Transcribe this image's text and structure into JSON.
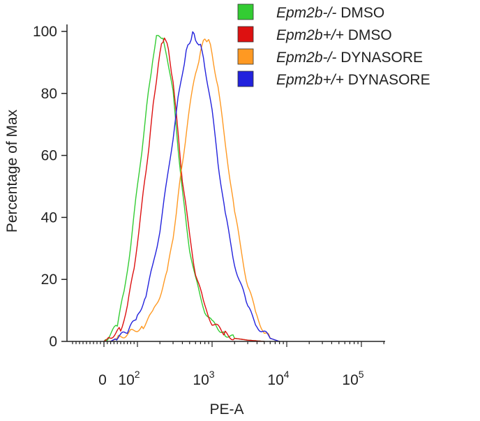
{
  "chart_data": {
    "type": "line",
    "title": "",
    "xlabel": "PE-A",
    "ylabel": "Percentage of Max",
    "x_scale": "biexponential",
    "xlim": [
      -30,
      200000
    ],
    "ylim": [
      0,
      100
    ],
    "y_ticks": [
      0,
      20,
      40,
      60,
      80,
      100
    ],
    "x_ticks": [
      {
        "value": 0,
        "base": "0",
        "exp": ""
      },
      {
        "value": 100,
        "base": "10",
        "exp": "2"
      },
      {
        "value": 1000,
        "base": "10",
        "exp": "3"
      },
      {
        "value": 10000,
        "base": "10",
        "exp": "4"
      },
      {
        "value": 100000,
        "base": "10",
        "exp": "5"
      }
    ],
    "grid": false,
    "legend_position": "top-right",
    "series": [
      {
        "name_italic": "Epm2b-/-",
        "name_rest": " DMSO",
        "color": "#33cc33",
        "x": [
          0,
          40,
          60,
          80,
          100,
          120,
          140,
          160,
          180,
          200,
          220,
          250,
          300,
          350,
          400,
          500,
          600,
          800,
          1000,
          1500,
          2000,
          3000,
          5000
        ],
        "y": [
          0,
          5,
          16,
          31,
          50,
          66,
          80,
          91,
          98,
          99,
          97,
          92,
          80,
          63,
          48,
          30,
          20,
          10,
          6,
          2.5,
          1,
          0.4,
          0
        ]
      },
      {
        "name_italic": "Epm2b+/+",
        "name_rest": " DMSO",
        "color": "#dd1111",
        "x": [
          0,
          50,
          70,
          90,
          110,
          130,
          150,
          170,
          190,
          210,
          230,
          260,
          300,
          350,
          400,
          500,
          600,
          800,
          1000,
          1500,
          2000,
          3000,
          5000
        ],
        "y": [
          0,
          4,
          11,
          24,
          40,
          55,
          68,
          80,
          89,
          96,
          98,
          94,
          84,
          67,
          52,
          34,
          22,
          11,
          6,
          2.5,
          1,
          0.4,
          0
        ]
      },
      {
        "name_italic": "Epm2b-/-",
        "name_rest": " DYNASORE",
        "color": "#ff9922",
        "x": [
          20,
          80,
          120,
          160,
          200,
          250,
          300,
          350,
          400,
          500,
          600,
          700,
          800,
          900,
          1000,
          1200,
          1500,
          2000,
          2500,
          3000,
          4000,
          5000,
          6000,
          8000
        ],
        "y": [
          0,
          3,
          5,
          9,
          15,
          22,
          34,
          46,
          58,
          75,
          87,
          93,
          98,
          97,
          93,
          82,
          64,
          42,
          28,
          18,
          8,
          3,
          1,
          0
        ]
      },
      {
        "name_italic": "Epm2b+/+",
        "name_rest": " DYNASORE",
        "color": "#2222dd",
        "x": [
          20,
          70,
          100,
          130,
          160,
          200,
          250,
          300,
          350,
          400,
          450,
          500,
          550,
          600,
          700,
          800,
          1000,
          1200,
          1500,
          2000,
          3000,
          4000,
          6000,
          8000
        ],
        "y": [
          0,
          3,
          8,
          15,
          24,
          36,
          52,
          66,
          78,
          87,
          93,
          97,
          99,
          98,
          95,
          89,
          74,
          58,
          41,
          25,
          11,
          5,
          1,
          0
        ]
      }
    ]
  }
}
